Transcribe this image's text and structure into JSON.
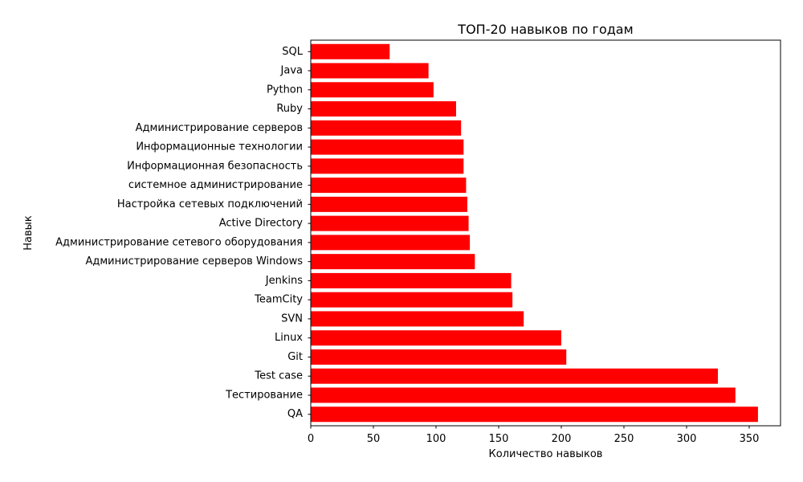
{
  "chart_data": {
    "type": "bar",
    "orientation": "horizontal",
    "title": "ТОП-20 навыков по годам",
    "xlabel": "Количество навыков",
    "ylabel": "Навык",
    "xlim": [
      0,
      375
    ],
    "xticks": [
      0,
      50,
      100,
      150,
      200,
      250,
      300,
      350
    ],
    "grid": false,
    "bar_color": "#ff0000",
    "categories": [
      "QA",
      "Тестирование",
      "Test case",
      "Git",
      "Linux",
      "SVN",
      "TeamCity",
      "Jenkins",
      "Администрирование серверов Windows",
      "Администрирование сетевого оборудования",
      "Active Directory",
      "Настройка сетевых подключений",
      "системное администрирование",
      "Информационная безопасность",
      "Информационные технологии",
      "Администрирование серверов",
      "Ruby",
      "Python",
      "Java",
      "SQL"
    ],
    "values": [
      357,
      339,
      325,
      204,
      200,
      170,
      161,
      160,
      131,
      127,
      126,
      125,
      124,
      122,
      122,
      120,
      116,
      98,
      94,
      63
    ]
  }
}
